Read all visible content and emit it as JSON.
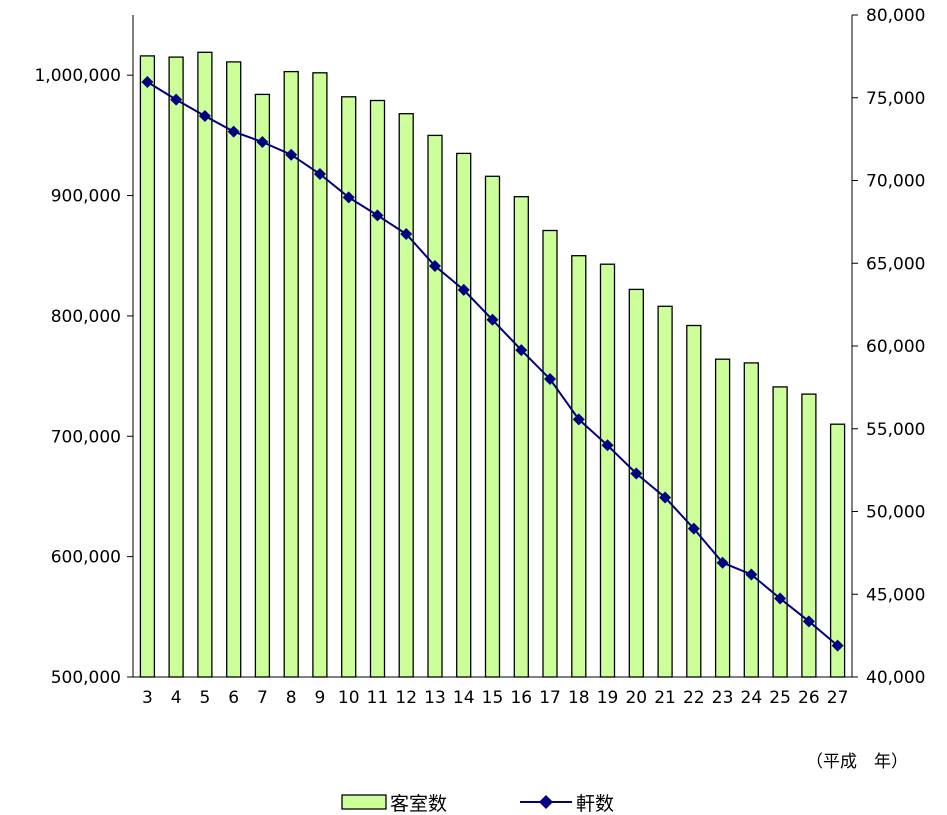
{
  "chart_data": {
    "type": "bar",
    "categories": [
      "3",
      "4",
      "5",
      "6",
      "7",
      "8",
      "9",
      "10",
      "11",
      "12",
      "13",
      "14",
      "15",
      "16",
      "17",
      "18",
      "19",
      "20",
      "21",
      "22",
      "23",
      "24",
      "25",
      "26",
      "27"
    ],
    "series": [
      {
        "name": "客室数",
        "type": "bar",
        "axis": "left",
        "color": "#ccff99",
        "values": [
          1016000,
          1015000,
          1019000,
          1011000,
          984000,
          1003000,
          1002000,
          982000,
          979000,
          968000,
          950000,
          935000,
          916000,
          899000,
          871000,
          850000,
          843000,
          822000,
          808000,
          792000,
          764000,
          761000,
          741000,
          735000,
          710000
        ]
      },
      {
        "name": "軒数",
        "type": "line",
        "axis": "right",
        "color": "#000080",
        "values": [
          75952,
          74889,
          73899,
          72952,
          72325,
          71556,
          70393,
          68982,
          67891,
          66766,
          64831,
          63388,
          61583,
          59754,
          58003,
          55567,
          54000,
          52294,
          50846,
          48966,
          46906,
          46196,
          44744,
          43363,
          41899
        ]
      }
    ],
    "y_left": {
      "min": 500000,
      "max": 1050000,
      "ticks": [
        "500,000",
        "600,000",
        "700,000",
        "800,000",
        "900,000",
        "1,000,000"
      ]
    },
    "y_right": {
      "min": 40000,
      "max": 80000,
      "ticks": [
        "40,000",
        "45,000",
        "50,000",
        "55,000",
        "60,000",
        "65,000",
        "70,000",
        "75,000",
        "80,000"
      ]
    },
    "xlabel": "（平成　年）",
    "grid": false,
    "legend_position": "bottom"
  },
  "legend": {
    "bar_label": "客室数",
    "line_label": "軒数"
  }
}
